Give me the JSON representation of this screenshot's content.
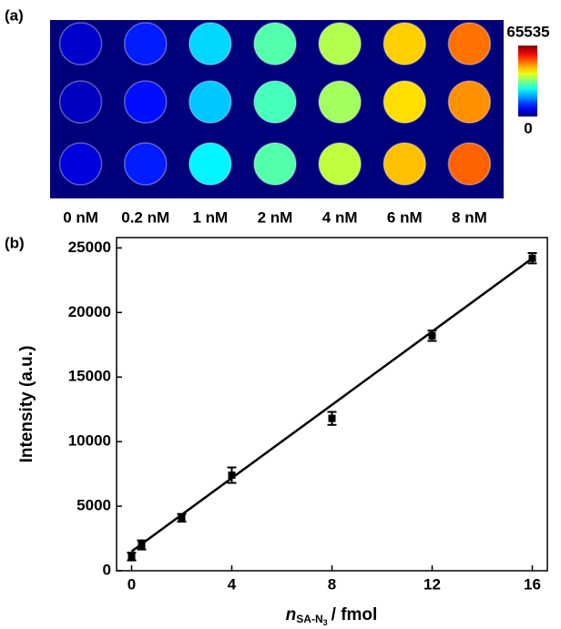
{
  "chart_data": [
    {
      "type": "heatmap",
      "panel_label": "(a)",
      "categories": [
        "0 nM",
        "0.2 nM",
        "1 nM",
        "2 nM",
        "4 nM",
        "6 nM",
        "8 nM"
      ],
      "values": [
        [
          5000,
          10000,
          22000,
          30000,
          36000,
          44000,
          50000
        ],
        [
          4000,
          9000,
          21000,
          29000,
          35000,
          43000,
          48000
        ],
        [
          6000,
          10000,
          24000,
          30000,
          37000,
          45000,
          51000
        ]
      ],
      "colorlim": [
        0,
        65535
      ],
      "colorbar_ticks": [
        0,
        65535
      ],
      "background": "#00007a"
    },
    {
      "type": "scatter",
      "panel_label": "(b)",
      "x": [
        0,
        0.4,
        2,
        4,
        8,
        12,
        16
      ],
      "values": [
        1100,
        2000,
        4100,
        7400,
        11800,
        18200,
        24200
      ],
      "errors": [
        300,
        350,
        300,
        600,
        500,
        400,
        400
      ],
      "color": "#000000",
      "fit": {
        "x": [
          0,
          16
        ],
        "values": [
          1500,
          24200
        ]
      },
      "xlim": [
        -0.6,
        16.6
      ],
      "xticks": [
        0,
        4,
        8,
        12,
        16
      ],
      "ylim": [
        0,
        25800
      ],
      "yticks": [
        0,
        5000,
        10000,
        15000,
        20000,
        25000
      ],
      "y_label": "Intensity (a.u.)",
      "x_label": {
        "symbol": "n",
        "subscript": "SA-N",
        "sub_subscript": "3",
        "unit": "/ fmol"
      }
    }
  ]
}
